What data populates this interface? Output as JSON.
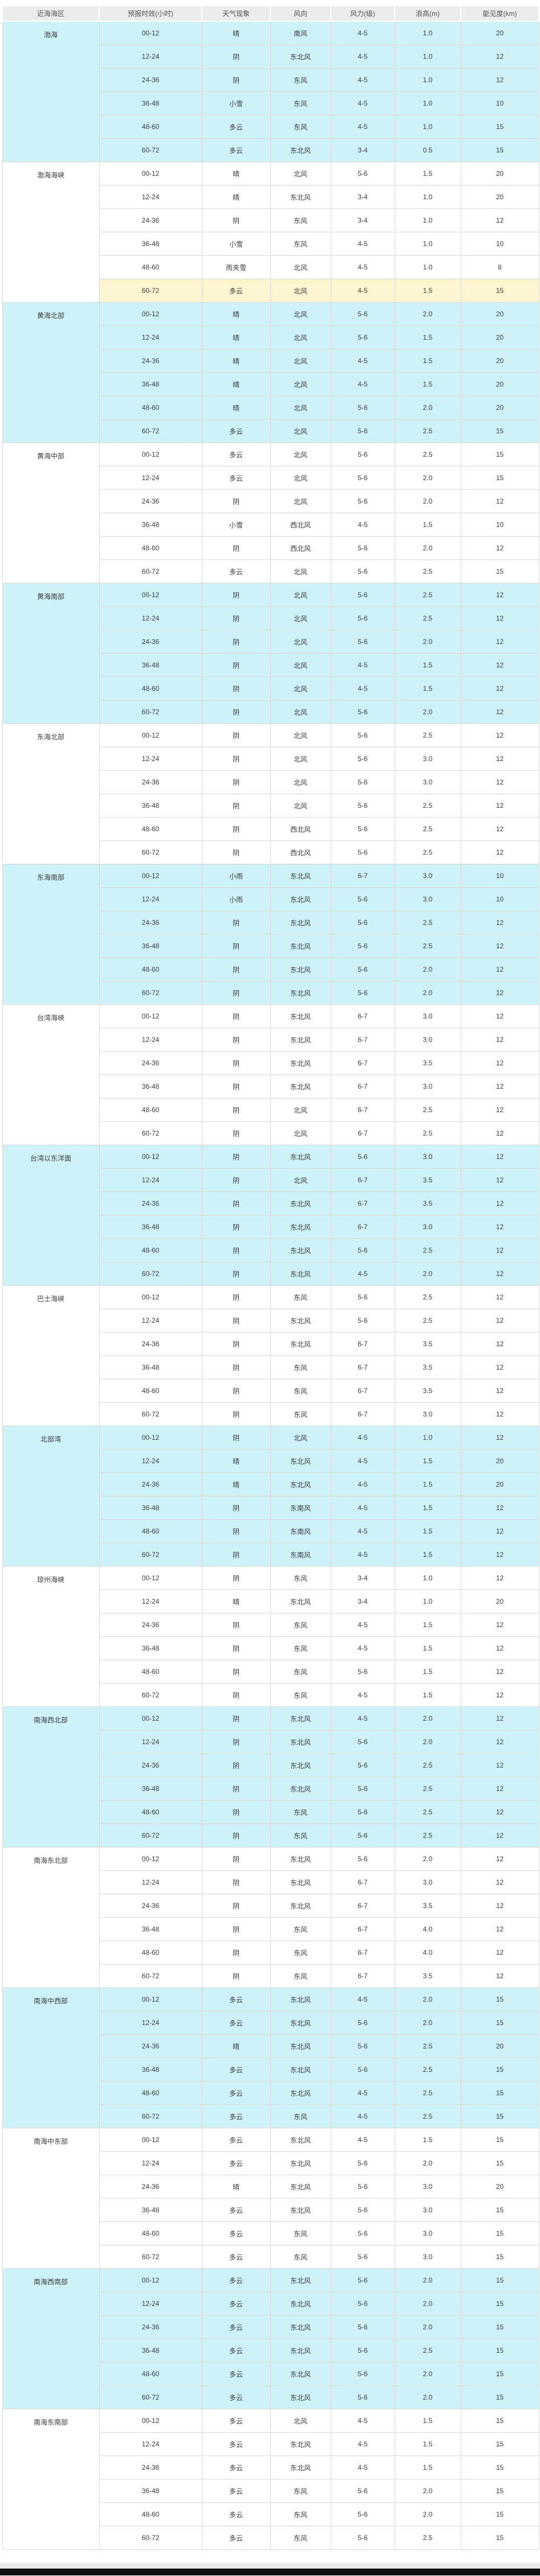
{
  "page": {
    "bg_color": "#ffffff",
    "footer_strip_color": "#e9e9e9",
    "footer_bar_color": "#111111"
  },
  "table": {
    "headers": [
      "近海海区",
      "预报时效(小时)",
      "天气现象",
      "风向",
      "风力(级)",
      "浪高(m)",
      "能见度(km)"
    ],
    "colors": {
      "header_bg": "#ececec",
      "header_text": "#525252",
      "block_cyan": "#cdf2f7",
      "block_white": "#ffffff",
      "highlight_row": "#fdf5cf",
      "border": "#d8d8d8",
      "cell_text": "#3d3d3d"
    },
    "highlight": {
      "area_index": 1,
      "row_index": 5
    },
    "areas": [
      {
        "name": "渤海",
        "shade": "cyan",
        "rows": [
          [
            "00-12",
            "晴",
            "南风",
            "4-5",
            "1.0",
            "20"
          ],
          [
            "12-24",
            "阴",
            "东北风",
            "4-5",
            "1.0",
            "12"
          ],
          [
            "24-36",
            "阴",
            "东风",
            "4-5",
            "1.0",
            "12"
          ],
          [
            "36-48",
            "小雪",
            "东风",
            "4-5",
            "1.0",
            "10"
          ],
          [
            "48-60",
            "多云",
            "东风",
            "4-5",
            "1.0",
            "15"
          ],
          [
            "60-72",
            "多云",
            "东北风",
            "3-4",
            "0.5",
            "15"
          ]
        ]
      },
      {
        "name": "渤海海峡",
        "shade": "white",
        "rows": [
          [
            "00-12",
            "晴",
            "北风",
            "5-6",
            "1.5",
            "20"
          ],
          [
            "12-24",
            "晴",
            "东北风",
            "3-4",
            "1.0",
            "20"
          ],
          [
            "24-36",
            "阴",
            "东风",
            "3-4",
            "1.0",
            "12"
          ],
          [
            "36-48",
            "小雪",
            "东风",
            "4-5",
            "1.0",
            "10"
          ],
          [
            "48-60",
            "雨夹雪",
            "北风",
            "4-5",
            "1.0",
            "8"
          ],
          [
            "60-72",
            "多云",
            "北风",
            "4-5",
            "1.5",
            "15"
          ]
        ]
      },
      {
        "name": "黄海北部",
        "shade": "cyan",
        "rows": [
          [
            "00-12",
            "晴",
            "北风",
            "5-6",
            "2.0",
            "20"
          ],
          [
            "12-24",
            "晴",
            "北风",
            "5-6",
            "1.5",
            "20"
          ],
          [
            "24-36",
            "晴",
            "北风",
            "4-5",
            "1.5",
            "20"
          ],
          [
            "36-48",
            "晴",
            "北风",
            "4-5",
            "1.5",
            "20"
          ],
          [
            "48-60",
            "晴",
            "北风",
            "5-6",
            "2.0",
            "20"
          ],
          [
            "60-72",
            "多云",
            "北风",
            "5-6",
            "2.5",
            "15"
          ]
        ]
      },
      {
        "name": "黄海中部",
        "shade": "white",
        "rows": [
          [
            "00-12",
            "多云",
            "北风",
            "5-6",
            "2.5",
            "15"
          ],
          [
            "12-24",
            "多云",
            "北风",
            "5-6",
            "2.0",
            "15"
          ],
          [
            "24-36",
            "阴",
            "北风",
            "5-6",
            "2.0",
            "12"
          ],
          [
            "36-48",
            "小雪",
            "西北风",
            "4-5",
            "1.5",
            "10"
          ],
          [
            "48-60",
            "阴",
            "西北风",
            "5-6",
            "2.0",
            "12"
          ],
          [
            "60-72",
            "多云",
            "北风",
            "5-6",
            "2.5",
            "15"
          ]
        ]
      },
      {
        "name": "黄海南部",
        "shade": "cyan",
        "rows": [
          [
            "00-12",
            "阴",
            "北风",
            "5-6",
            "2.5",
            "12"
          ],
          [
            "12-24",
            "阴",
            "北风",
            "5-6",
            "2.5",
            "12"
          ],
          [
            "24-36",
            "阴",
            "北风",
            "5-6",
            "2.0",
            "12"
          ],
          [
            "36-48",
            "阴",
            "北风",
            "4-5",
            "1.5",
            "12"
          ],
          [
            "48-60",
            "阴",
            "北风",
            "4-5",
            "1.5",
            "12"
          ],
          [
            "60-72",
            "阴",
            "北风",
            "5-6",
            "2.0",
            "12"
          ]
        ]
      },
      {
        "name": "东海北部",
        "shade": "white",
        "rows": [
          [
            "00-12",
            "阴",
            "北风",
            "5-6",
            "2.5",
            "12"
          ],
          [
            "12-24",
            "阴",
            "北风",
            "5-6",
            "3.0",
            "12"
          ],
          [
            "24-36",
            "阴",
            "北风",
            "5-6",
            "3.0",
            "12"
          ],
          [
            "36-48",
            "阴",
            "北风",
            "5-6",
            "2.5",
            "12"
          ],
          [
            "48-60",
            "阴",
            "西北风",
            "5-6",
            "2.5",
            "12"
          ],
          [
            "60-72",
            "阴",
            "西北风",
            "5-6",
            "2.5",
            "12"
          ]
        ]
      },
      {
        "name": "东海南部",
        "shade": "cyan",
        "rows": [
          [
            "00-12",
            "小雨",
            "东北风",
            "6-7",
            "3.0",
            "10"
          ],
          [
            "12-24",
            "小雨",
            "东北风",
            "5-6",
            "3.0",
            "10"
          ],
          [
            "24-36",
            "阴",
            "东北风",
            "5-6",
            "2.5",
            "12"
          ],
          [
            "36-48",
            "阴",
            "东北风",
            "5-6",
            "2.5",
            "12"
          ],
          [
            "48-60",
            "阴",
            "东北风",
            "5-6",
            "2.0",
            "12"
          ],
          [
            "60-72",
            "阴",
            "东北风",
            "5-6",
            "2.0",
            "12"
          ]
        ]
      },
      {
        "name": "台湾海峡",
        "shade": "white",
        "rows": [
          [
            "00-12",
            "阴",
            "东北风",
            "6-7",
            "3.0",
            "12"
          ],
          [
            "12-24",
            "阴",
            "东北风",
            "6-7",
            "3.0",
            "12"
          ],
          [
            "24-36",
            "阴",
            "东北风",
            "6-7",
            "3.5",
            "12"
          ],
          [
            "36-48",
            "阴",
            "东北风",
            "6-7",
            "3.0",
            "12"
          ],
          [
            "48-60",
            "阴",
            "北风",
            "6-7",
            "2.5",
            "12"
          ],
          [
            "60-72",
            "阴",
            "北风",
            "6-7",
            "2.5",
            "12"
          ]
        ]
      },
      {
        "name": "台湾以东洋面",
        "shade": "cyan",
        "rows": [
          [
            "00-12",
            "阴",
            "东北风",
            "5-6",
            "3.0",
            "12"
          ],
          [
            "12-24",
            "阴",
            "北风",
            "6-7",
            "3.5",
            "12"
          ],
          [
            "24-36",
            "阴",
            "东北风",
            "6-7",
            "3.5",
            "12"
          ],
          [
            "36-48",
            "阴",
            "东北风",
            "6-7",
            "3.0",
            "12"
          ],
          [
            "48-60",
            "阴",
            "东北风",
            "5-6",
            "2.5",
            "12"
          ],
          [
            "60-72",
            "阴",
            "东北风",
            "4-5",
            "2.0",
            "12"
          ]
        ]
      },
      {
        "name": "巴士海峡",
        "shade": "white",
        "rows": [
          [
            "00-12",
            "阴",
            "东风",
            "5-6",
            "2.5",
            "12"
          ],
          [
            "12-24",
            "阴",
            "东北风",
            "5-6",
            "2.5",
            "12"
          ],
          [
            "24-36",
            "阴",
            "东北风",
            "6-7",
            "3.5",
            "12"
          ],
          [
            "36-48",
            "阴",
            "东风",
            "6-7",
            "3.5",
            "12"
          ],
          [
            "48-60",
            "阴",
            "东风",
            "6-7",
            "3.5",
            "12"
          ],
          [
            "60-72",
            "阴",
            "东风",
            "6-7",
            "3.0",
            "12"
          ]
        ]
      },
      {
        "name": "北部湾",
        "shade": "cyan",
        "rows": [
          [
            "00-12",
            "阴",
            "北风",
            "4-5",
            "1.0",
            "12"
          ],
          [
            "12-24",
            "晴",
            "东北风",
            "4-5",
            "1.5",
            "20"
          ],
          [
            "24-36",
            "晴",
            "东北风",
            "4-5",
            "1.5",
            "20"
          ],
          [
            "36-48",
            "阴",
            "东南风",
            "4-5",
            "1.5",
            "12"
          ],
          [
            "48-60",
            "阴",
            "东南风",
            "4-5",
            "1.5",
            "12"
          ],
          [
            "60-72",
            "阴",
            "东南风",
            "4-5",
            "1.5",
            "12"
          ]
        ]
      },
      {
        "name": "琼州海峡",
        "shade": "white",
        "rows": [
          [
            "00-12",
            "阴",
            "东风",
            "3-4",
            "1.0",
            "12"
          ],
          [
            "12-24",
            "晴",
            "东北风",
            "3-4",
            "1.0",
            "20"
          ],
          [
            "24-36",
            "阴",
            "东风",
            "4-5",
            "1.5",
            "12"
          ],
          [
            "36-48",
            "阴",
            "东风",
            "4-5",
            "1.5",
            "12"
          ],
          [
            "48-60",
            "阴",
            "东风",
            "5-6",
            "1.5",
            "12"
          ],
          [
            "60-72",
            "阴",
            "东风",
            "4-5",
            "1.5",
            "12"
          ]
        ]
      },
      {
        "name": "南海西北部",
        "shade": "cyan",
        "rows": [
          [
            "00-12",
            "阴",
            "东北风",
            "4-5",
            "2.0",
            "12"
          ],
          [
            "12-24",
            "阴",
            "东北风",
            "5-6",
            "2.0",
            "12"
          ],
          [
            "24-36",
            "阴",
            "东北风",
            "5-6",
            "2.5",
            "12"
          ],
          [
            "36-48",
            "阴",
            "东北风",
            "5-6",
            "2.5",
            "12"
          ],
          [
            "48-60",
            "阴",
            "东风",
            "5-6",
            "2.5",
            "12"
          ],
          [
            "60-72",
            "阴",
            "东风",
            "5-6",
            "2.5",
            "12"
          ]
        ]
      },
      {
        "name": "南海东北部",
        "shade": "white",
        "rows": [
          [
            "00-12",
            "阴",
            "东北风",
            "5-6",
            "2.0",
            "12"
          ],
          [
            "12-24",
            "阴",
            "东北风",
            "6-7",
            "3.0",
            "12"
          ],
          [
            "24-36",
            "阴",
            "东北风",
            "6-7",
            "3.5",
            "12"
          ],
          [
            "36-48",
            "阴",
            "东风",
            "6-7",
            "4.0",
            "12"
          ],
          [
            "48-60",
            "阴",
            "东风",
            "6-7",
            "4.0",
            "12"
          ],
          [
            "60-72",
            "阴",
            "东风",
            "6-7",
            "3.5",
            "12"
          ]
        ]
      },
      {
        "name": "南海中西部",
        "shade": "cyan",
        "rows": [
          [
            "00-12",
            "多云",
            "东北风",
            "4-5",
            "2.0",
            "15"
          ],
          [
            "12-24",
            "多云",
            "东北风",
            "5-6",
            "2.0",
            "15"
          ],
          [
            "24-36",
            "晴",
            "东北风",
            "5-6",
            "2.5",
            "20"
          ],
          [
            "36-48",
            "多云",
            "东北风",
            "5-6",
            "2.5",
            "15"
          ],
          [
            "48-60",
            "多云",
            "东北风",
            "4-5",
            "2.5",
            "15"
          ],
          [
            "60-72",
            "多云",
            "东风",
            "4-5",
            "2.5",
            "15"
          ]
        ]
      },
      {
        "name": "南海中东部",
        "shade": "white",
        "rows": [
          [
            "00-12",
            "多云",
            "东北风",
            "4-5",
            "1.5",
            "15"
          ],
          [
            "12-24",
            "多云",
            "东北风",
            "5-6",
            "2.0",
            "15"
          ],
          [
            "24-36",
            "晴",
            "东北风",
            "5-6",
            "3.0",
            "20"
          ],
          [
            "36-48",
            "多云",
            "东北风",
            "5-6",
            "3.0",
            "15"
          ],
          [
            "48-60",
            "多云",
            "东风",
            "5-6",
            "3.0",
            "15"
          ],
          [
            "60-72",
            "多云",
            "东风",
            "5-6",
            "3.0",
            "15"
          ]
        ]
      },
      {
        "name": "南海西南部",
        "shade": "cyan",
        "rows": [
          [
            "00-12",
            "多云",
            "东北风",
            "5-6",
            "2.0",
            "15"
          ],
          [
            "12-24",
            "多云",
            "东北风",
            "5-6",
            "2.0",
            "15"
          ],
          [
            "24-36",
            "多云",
            "东北风",
            "5-6",
            "2.0",
            "15"
          ],
          [
            "36-48",
            "多云",
            "东北风",
            "5-6",
            "2.5",
            "15"
          ],
          [
            "48-60",
            "多云",
            "东北风",
            "5-6",
            "2.0",
            "15"
          ],
          [
            "60-72",
            "多云",
            "东北风",
            "5-6",
            "2.0",
            "15"
          ]
        ]
      },
      {
        "name": "南海东南部",
        "shade": "white",
        "rows": [
          [
            "00-12",
            "多云",
            "北风",
            "4-5",
            "1.5",
            "15"
          ],
          [
            "12-24",
            "多云",
            "东北风",
            "4-5",
            "1.5",
            "15"
          ],
          [
            "24-36",
            "多云",
            "东北风",
            "4-5",
            "1.5",
            "15"
          ],
          [
            "36-48",
            "多云",
            "东风",
            "5-6",
            "2.0",
            "15"
          ],
          [
            "48-60",
            "多云",
            "东风",
            "5-6",
            "2.0",
            "15"
          ],
          [
            "60-72",
            "多云",
            "东风",
            "5-6",
            "2.5",
            "15"
          ]
        ]
      }
    ]
  }
}
